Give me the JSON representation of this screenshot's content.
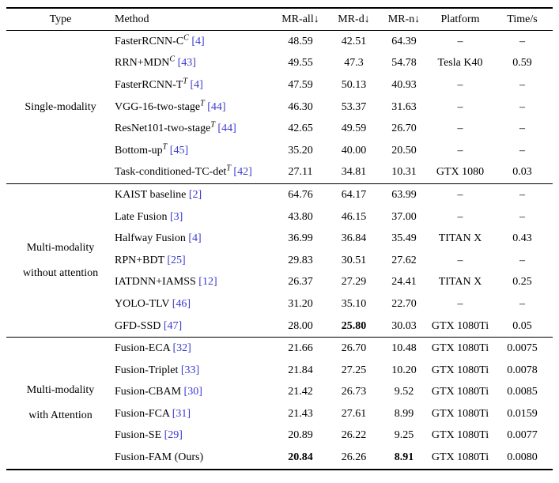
{
  "colors": {
    "citation": "#3a3acd",
    "text": "#000000",
    "rule": "#000000"
  },
  "table": {
    "headers": [
      "Type",
      "Method",
      "MR-all↓",
      "MR-d↓",
      "MR-n↓",
      "Platform",
      "Time/s"
    ],
    "missing_value_glyph": "–",
    "sections": [
      {
        "type_lines": [
          "Single-modality"
        ],
        "rows": [
          {
            "method": "FasterRCNN-C",
            "sup": "C",
            "cite": "[4]",
            "mr_all": "48.59",
            "mr_d": "42.51",
            "mr_n": "64.39",
            "platform": "–",
            "time": "–",
            "bold": []
          },
          {
            "method": "RRN+MDN",
            "sup": "C",
            "cite": "[43]",
            "mr_all": "49.55",
            "mr_d": "47.3",
            "mr_n": "54.78",
            "platform": "Tesla K40",
            "time": "0.59",
            "bold": []
          },
          {
            "method": "FasterRCNN-T",
            "sup": "T",
            "cite": "[4]",
            "mr_all": "47.59",
            "mr_d": "50.13",
            "mr_n": "40.93",
            "platform": "–",
            "time": "–",
            "bold": []
          },
          {
            "method": "VGG-16-two-stage",
            "sup": "T",
            "cite": "[44]",
            "mr_all": "46.30",
            "mr_d": "53.37",
            "mr_n": "31.63",
            "platform": "–",
            "time": "–",
            "bold": []
          },
          {
            "method": "ResNet101-two-stage",
            "sup": "T",
            "cite": "[44]",
            "mr_all": "42.65",
            "mr_d": "49.59",
            "mr_n": "26.70",
            "platform": "–",
            "time": "–",
            "bold": []
          },
          {
            "method": "Bottom-up",
            "sup": "T",
            "cite": "[45]",
            "mr_all": "35.20",
            "mr_d": "40.00",
            "mr_n": "20.50",
            "platform": "–",
            "time": "–",
            "bold": []
          },
          {
            "method": "Task-conditioned-TC-det",
            "sup": "T",
            "cite": "[42]",
            "mr_all": "27.11",
            "mr_d": "34.81",
            "mr_n": "10.31",
            "platform": "GTX 1080",
            "time": "0.03",
            "bold": []
          }
        ]
      },
      {
        "type_lines": [
          "Multi-modality",
          "without attention"
        ],
        "rows": [
          {
            "method": "KAIST baseline",
            "sup": "",
            "cite": "[2]",
            "mr_all": "64.76",
            "mr_d": "64.17",
            "mr_n": "63.99",
            "platform": "–",
            "time": "–",
            "bold": []
          },
          {
            "method": "Late Fusion",
            "sup": "",
            "cite": "[3]",
            "mr_all": "43.80",
            "mr_d": "46.15",
            "mr_n": "37.00",
            "platform": "–",
            "time": "–",
            "bold": []
          },
          {
            "method": "Halfway Fusion",
            "sup": "",
            "cite": "[4]",
            "mr_all": "36.99",
            "mr_d": "36.84",
            "mr_n": "35.49",
            "platform": "TITAN X",
            "time": "0.43",
            "bold": []
          },
          {
            "method": "RPN+BDT",
            "sup": "",
            "cite": "[25]",
            "mr_all": "29.83",
            "mr_d": "30.51",
            "mr_n": "27.62",
            "platform": "–",
            "time": "–",
            "bold": []
          },
          {
            "method": "IATDNN+IAMSS",
            "sup": "",
            "cite": "[12]",
            "mr_all": "26.37",
            "mr_d": "27.29",
            "mr_n": "24.41",
            "platform": "TITAN X",
            "time": "0.25",
            "bold": []
          },
          {
            "method": "YOLO-TLV",
            "sup": "",
            "cite": "[46]",
            "mr_all": "31.20",
            "mr_d": "35.10",
            "mr_n": "22.70",
            "platform": "–",
            "time": "–",
            "bold": []
          },
          {
            "method": "GFD-SSD",
            "sup": "",
            "cite": "[47]",
            "mr_all": "28.00",
            "mr_d": "25.80",
            "mr_n": "30.03",
            "platform": "GTX 1080Ti",
            "time": "0.05",
            "bold": [
              "mr_d"
            ]
          }
        ]
      },
      {
        "type_lines": [
          "Multi-modality",
          "with Attention"
        ],
        "rows": [
          {
            "method": "Fusion-ECA",
            "sup": "",
            "cite": "[32]",
            "mr_all": "21.66",
            "mr_d": "26.70",
            "mr_n": "10.48",
            "platform": "GTX 1080Ti",
            "time": "0.0075",
            "bold": []
          },
          {
            "method": "Fusion-Triplet",
            "sup": "",
            "cite": "[33]",
            "mr_all": "21.84",
            "mr_d": "27.25",
            "mr_n": "10.20",
            "platform": "GTX 1080Ti",
            "time": "0.0078",
            "bold": []
          },
          {
            "method": "Fusion-CBAM",
            "sup": "",
            "cite": "[30]",
            "mr_all": "21.42",
            "mr_d": "26.73",
            "mr_n": "9.52",
            "platform": "GTX 1080Ti",
            "time": "0.0085",
            "bold": []
          },
          {
            "method": "Fusion-FCA",
            "sup": "",
            "cite": "[31]",
            "mr_all": "21.43",
            "mr_d": "27.61",
            "mr_n": "8.99",
            "platform": "GTX 1080Ti",
            "time": "0.0159",
            "bold": []
          },
          {
            "method": "Fusion-SE",
            "sup": "",
            "cite": "[29]",
            "mr_all": "20.89",
            "mr_d": "26.22",
            "mr_n": "9.25",
            "platform": "GTX 1080Ti",
            "time": "0.0077",
            "bold": []
          },
          {
            "method": "Fusion-FAM (Ours)",
            "sup": "",
            "cite": "",
            "mr_all": "20.84",
            "mr_d": "26.26",
            "mr_n": "8.91",
            "platform": "GTX 1080Ti",
            "time": "0.0080",
            "bold": [
              "mr_all",
              "mr_n"
            ]
          }
        ]
      }
    ]
  }
}
